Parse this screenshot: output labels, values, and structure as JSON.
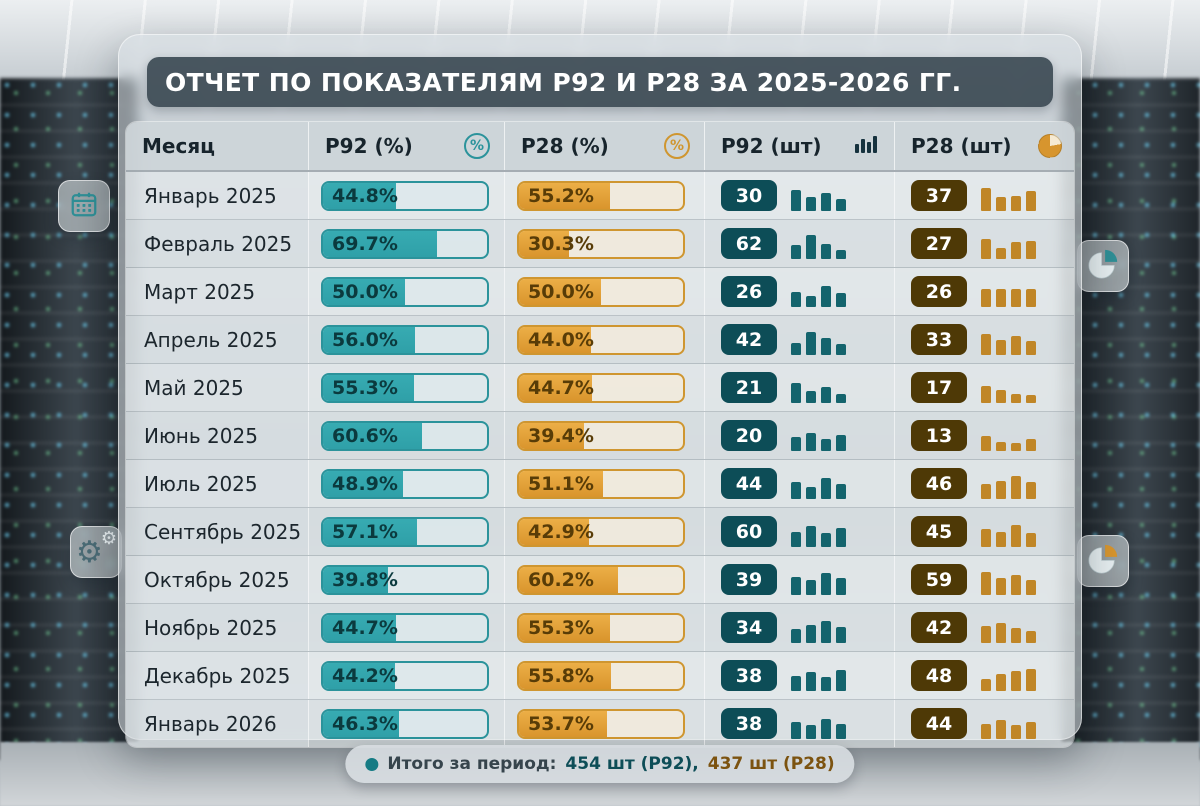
{
  "title": "ОТЧЕТ ПО ПОКАЗАТЕЛЯМ P92 И P28 ЗА 2025-2026 ГГ.",
  "icons": {
    "percent": "%",
    "bar_chart": "bar-chart-glyph",
    "pie_chart": "pie-glyph",
    "calendar": "calendar-glyph",
    "gear": "⚙"
  },
  "colors": {
    "teal": "#2b939b",
    "teal_dark": "#0d4d57",
    "amber": "#d9952d",
    "brown": "#4e3906"
  },
  "table": {
    "columns": [
      "Месяц",
      "P92 (%)",
      "P28 (%)",
      "P92 (шт)",
      "P28 (шт)"
    ],
    "rows": [
      {
        "month": "Январь 2025",
        "p92_pct": "44.8%",
        "p92_val": 44.8,
        "p28_pct": "55.2%",
        "p28_val": 55.2,
        "p92_count": "30",
        "p28_count": "37",
        "p92_spark": [
          70,
          45,
          60,
          40
        ],
        "p28_spark": [
          75,
          45,
          50,
          65
        ]
      },
      {
        "month": "Февраль 2025",
        "p92_pct": "69.7%",
        "p92_val": 69.7,
        "p28_pct": "30.3%",
        "p28_val": 30.3,
        "p92_count": "62",
        "p28_count": "27",
        "p92_spark": [
          45,
          80,
          50,
          30
        ],
        "p28_spark": [
          65,
          35,
          55,
          60
        ]
      },
      {
        "month": "Март 2025",
        "p92_pct": "50.0%",
        "p92_val": 50.0,
        "p28_pct": "50.0%",
        "p28_val": 50.0,
        "p92_count": "26",
        "p28_count": "26",
        "p92_spark": [
          50,
          35,
          70,
          45
        ],
        "p28_spark": [
          60,
          60,
          60,
          60
        ]
      },
      {
        "month": "Апрель 2025",
        "p92_pct": "56.0%",
        "p92_val": 56.0,
        "p28_pct": "44.0%",
        "p28_val": 44.0,
        "p92_count": "42",
        "p28_count": "33",
        "p92_spark": [
          40,
          75,
          55,
          35
        ],
        "p28_spark": [
          70,
          50,
          62,
          45
        ]
      },
      {
        "month": "Май 2025",
        "p92_pct": "55.3%",
        "p92_val": 55.3,
        "p28_pct": "44.7%",
        "p28_val": 44.7,
        "p92_count": "21",
        "p28_count": "17",
        "p92_spark": [
          65,
          40,
          52,
          30
        ],
        "p28_spark": [
          55,
          42,
          30,
          25
        ]
      },
      {
        "month": "Июнь 2025",
        "p92_pct": "60.6%",
        "p92_val": 60.6,
        "p28_pct": "39.4%",
        "p28_val": 39.4,
        "p92_count": "20",
        "p28_count": "13",
        "p92_spark": [
          45,
          58,
          40,
          52
        ],
        "p28_spark": [
          50,
          30,
          25,
          40
        ]
      },
      {
        "month": "Июль 2025",
        "p92_pct": "48.9%",
        "p92_val": 48.9,
        "p28_pct": "51.1%",
        "p28_val": 51.1,
        "p92_count": "44",
        "p28_count": "46",
        "p92_spark": [
          55,
          40,
          68,
          50
        ],
        "p28_spark": [
          48,
          60,
          75,
          55
        ]
      },
      {
        "month": "Сентябрь 2025",
        "p92_pct": "57.1%",
        "p92_val": 57.1,
        "p28_pct": "42.9%",
        "p28_val": 42.9,
        "p92_count": "60",
        "p28_count": "45",
        "p92_spark": [
          50,
          68,
          45,
          62
        ],
        "p28_spark": [
          60,
          50,
          72,
          45
        ]
      },
      {
        "month": "Октябрь 2025",
        "p92_pct": "39.8%",
        "p92_val": 39.8,
        "p28_pct": "60.2%",
        "p28_val": 60.2,
        "p92_count": "39",
        "p28_count": "59",
        "p92_spark": [
          60,
          50,
          72,
          55
        ],
        "p28_spark": [
          75,
          55,
          65,
          50
        ]
      },
      {
        "month": "Ноябрь 2025",
        "p92_pct": "44.7%",
        "p92_val": 44.7,
        "p28_pct": "55.3%",
        "p28_val": 55.3,
        "p92_count": "34",
        "p28_count": "42",
        "p92_spark": [
          45,
          60,
          72,
          52
        ],
        "p28_spark": [
          55,
          65,
          50,
          40
        ]
      },
      {
        "month": "Декабрь 2025",
        "p92_pct": "44.2%",
        "p92_val": 44.2,
        "p28_pct": "55.8%",
        "p28_val": 55.8,
        "p92_count": "38",
        "p28_count": "48",
        "p92_spark": [
          50,
          62,
          45,
          68
        ],
        "p28_spark": [
          40,
          55,
          65,
          72
        ]
      },
      {
        "month": "Январь 2026",
        "p92_pct": "46.3%",
        "p92_val": 46.3,
        "p28_pct": "53.7%",
        "p28_val": 53.7,
        "p92_count": "38",
        "p28_count": "44",
        "p92_spark": [
          55,
          45,
          66,
          50
        ],
        "p28_spark": [
          50,
          62,
          45,
          56
        ]
      }
    ]
  },
  "footer": {
    "label": "Итого за период:",
    "p92_total": "454 шт (P92),",
    "p28_total": "437 шт (P28)"
  },
  "chart_data": {
    "type": "table",
    "title": "ОТЧЕТ ПО ПОКАЗАТЕЛЯМ P92 И P28 ЗА 2025-2026 ГГ.",
    "categories": [
      "Январь 2025",
      "Февраль 2025",
      "Март 2025",
      "Апрель 2025",
      "Май 2025",
      "Июнь 2025",
      "Июль 2025",
      "Сентябрь 2025",
      "Октябрь 2025",
      "Ноябрь 2025",
      "Декабрь 2025",
      "Январь 2026"
    ],
    "series": [
      {
        "name": "P92 (%)",
        "values": [
          44.8,
          69.7,
          50.0,
          56.0,
          55.3,
          60.6,
          48.9,
          57.1,
          39.8,
          44.7,
          44.2,
          46.3
        ]
      },
      {
        "name": "P28 (%)",
        "values": [
          55.2,
          30.3,
          50.0,
          44.0,
          44.7,
          39.4,
          51.1,
          42.9,
          60.2,
          55.3,
          55.8,
          53.7
        ]
      },
      {
        "name": "P92 (шт)",
        "values": [
          30,
          62,
          26,
          42,
          21,
          20,
          44,
          60,
          39,
          34,
          38,
          38
        ]
      },
      {
        "name": "P28 (шт)",
        "values": [
          37,
          27,
          26,
          33,
          17,
          13,
          46,
          45,
          59,
          42,
          48,
          44
        ]
      }
    ],
    "totals": {
      "p92_total_units": 454,
      "p28_total_units": 437
    }
  }
}
